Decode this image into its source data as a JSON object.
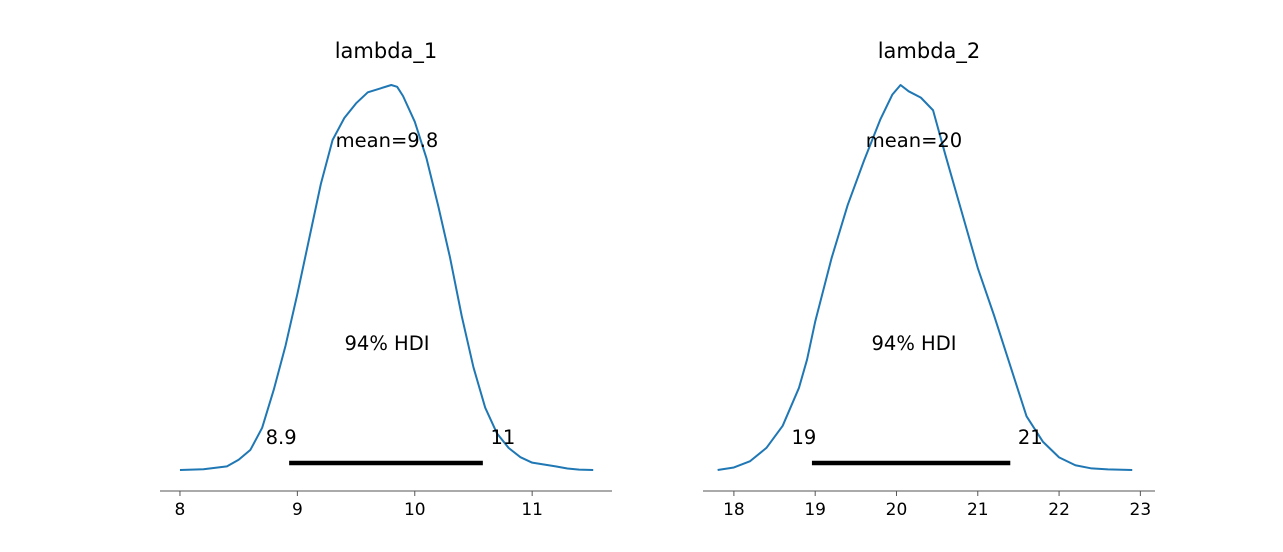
{
  "chart_data": [
    {
      "type": "line",
      "title": "lambda_1",
      "mean_label": "mean=9.8",
      "hdi_label": "94% HDI",
      "hdi_low_label": "8.9",
      "hdi_high_label": "11",
      "hdi": [
        8.93,
        10.58
      ],
      "xlim": [
        7.83,
        11.68
      ],
      "xticks": [
        "8",
        "9",
        "10",
        "11"
      ],
      "line_color": "#1f77b4",
      "x": [
        8.0,
        8.2,
        8.4,
        8.5,
        8.6,
        8.7,
        8.8,
        8.9,
        9.0,
        9.1,
        9.2,
        9.3,
        9.4,
        9.5,
        9.6,
        9.7,
        9.8,
        9.85,
        9.9,
        10.0,
        10.1,
        10.2,
        10.3,
        10.4,
        10.5,
        10.6,
        10.7,
        10.8,
        10.9,
        11.0,
        11.1,
        11.2,
        11.3,
        11.4,
        11.52
      ],
      "y": [
        0.0,
        0.002,
        0.01,
        0.028,
        0.055,
        0.115,
        0.22,
        0.34,
        0.48,
        0.63,
        0.78,
        0.9,
        0.96,
        1.0,
        1.03,
        1.04,
        1.05,
        1.045,
        1.02,
        0.95,
        0.85,
        0.72,
        0.58,
        0.42,
        0.28,
        0.17,
        0.1,
        0.06,
        0.035,
        0.02,
        0.015,
        0.01,
        0.004,
        0.001,
        0.0
      ]
    },
    {
      "type": "line",
      "title": "lambda_2",
      "mean_label": "mean=20",
      "hdi_label": "94% HDI",
      "hdi_low_label": "19",
      "hdi_high_label": "21",
      "hdi": [
        18.96,
        21.4
      ],
      "xlim": [
        17.62,
        23.18
      ],
      "xticks": [
        "18",
        "19",
        "20",
        "21",
        "22",
        "23"
      ],
      "line_color": "#1f77b4",
      "x": [
        17.8,
        18.0,
        18.2,
        18.4,
        18.6,
        18.8,
        18.9,
        19.0,
        19.2,
        19.4,
        19.6,
        19.8,
        19.95,
        20.05,
        20.15,
        20.3,
        20.45,
        20.6,
        20.8,
        21.0,
        21.2,
        21.4,
        21.6,
        21.8,
        22.0,
        22.2,
        22.4,
        22.6,
        22.9
      ],
      "y": [
        0.0,
        0.008,
        0.028,
        0.07,
        0.14,
        0.26,
        0.35,
        0.47,
        0.67,
        0.84,
        0.98,
        1.11,
        1.19,
        1.22,
        1.2,
        1.18,
        1.14,
        1.0,
        0.82,
        0.64,
        0.49,
        0.33,
        0.17,
        0.09,
        0.04,
        0.015,
        0.005,
        0.002,
        0.0
      ]
    }
  ]
}
